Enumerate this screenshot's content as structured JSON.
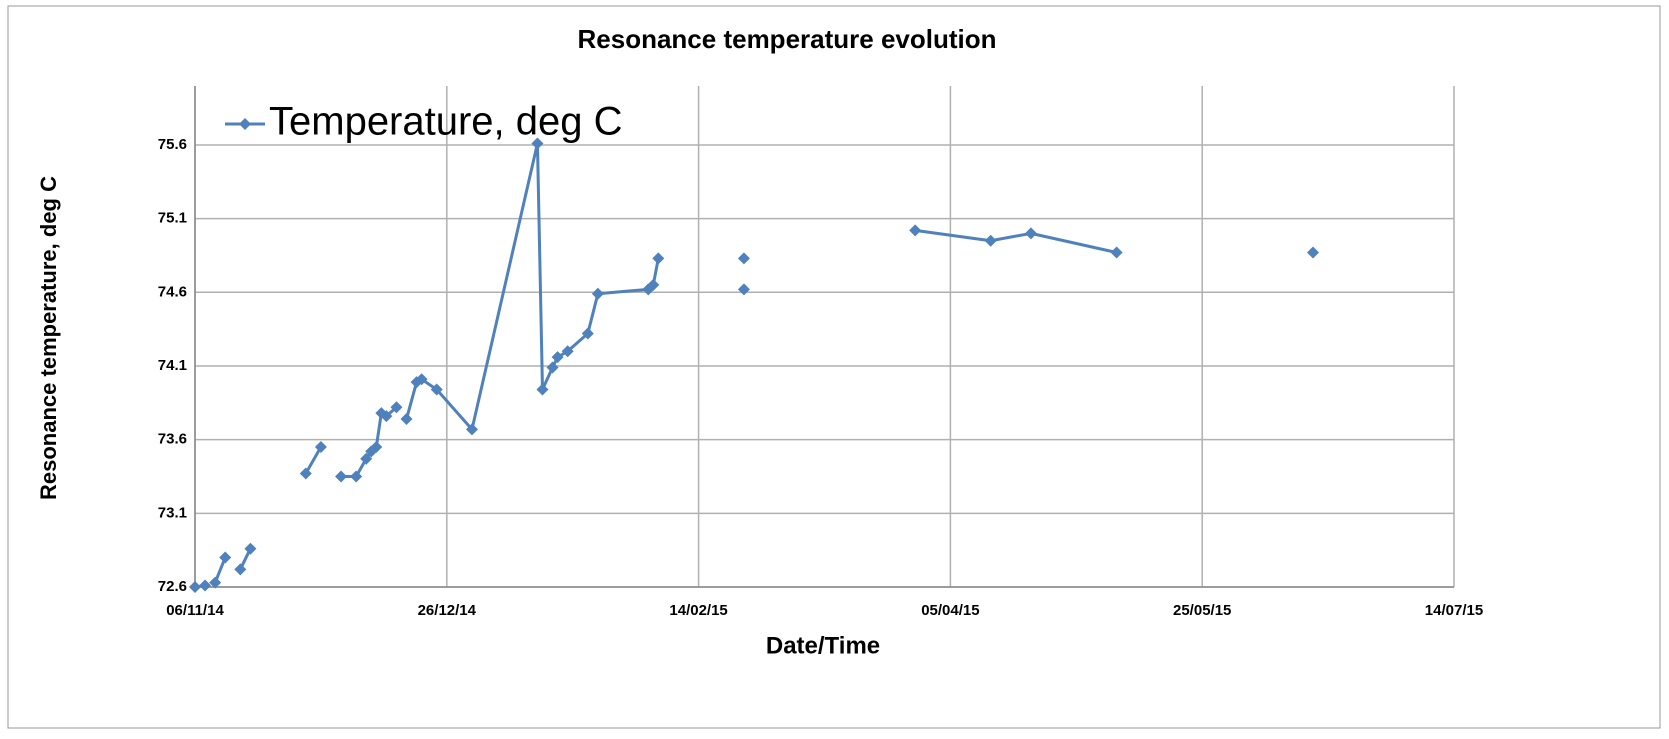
{
  "chart_data": {
    "type": "line",
    "title": "Resonance temperature evolution",
    "x_label": "Date/Time",
    "y_label": "Resonance temperature, deg C",
    "x": [
      "06/11/14",
      "08/11/14",
      null,
      "10/11/14",
      "12/11/14",
      null,
      "15/11/14",
      "17/11/14",
      null,
      "28/11/14",
      "01/12/14",
      null,
      "05/12/14",
      "08/12/14",
      "10/12/14",
      "11/12/14",
      "12/12/14",
      "13/12/14",
      "14/12/14",
      "16/12/14",
      null,
      "18/12/14",
      "20/12/14",
      "21/12/14",
      "24/12/14",
      "31/12/14",
      "13/01/15",
      "14/01/15",
      "16/01/15",
      "17/01/15",
      "19/01/15",
      "23/01/15",
      "25/01/15",
      "04/02/15",
      "05/02/15",
      "06/02/15",
      null,
      "23/02/15",
      null,
      "23/02/15",
      null,
      "29/03/15",
      "13/04/15",
      "21/04/15",
      "08/05/15",
      null,
      "16/06/15"
    ],
    "series": [
      {
        "name": "Temperature, deg C",
        "color": "#4f81bd",
        "values": [
          72.6,
          72.61,
          null,
          72.63,
          72.8,
          null,
          72.72,
          72.86,
          null,
          73.37,
          73.55,
          null,
          73.35,
          73.35,
          73.47,
          73.52,
          73.55,
          73.78,
          73.76,
          73.82,
          null,
          73.74,
          73.99,
          74.01,
          73.94,
          73.67,
          75.61,
          73.94,
          74.09,
          74.16,
          74.2,
          74.32,
          74.59,
          74.62,
          74.65,
          74.83,
          null,
          74.83,
          null,
          74.62,
          null,
          75.02,
          74.95,
          75.0,
          74.87,
          null,
          74.87
        ]
      }
    ],
    "xlim": [
      "06/11/14",
      "14/07/15"
    ],
    "xticks": [
      "06/11/14",
      "26/12/14",
      "14/02/15",
      "05/04/15",
      "25/05/15",
      "14/07/15"
    ],
    "ylim": [
      72.6,
      76.0
    ],
    "yticks": [
      72.6,
      73.1,
      73.6,
      74.1,
      74.6,
      75.1,
      75.6
    ],
    "grid": true,
    "legend": "top-left"
  }
}
